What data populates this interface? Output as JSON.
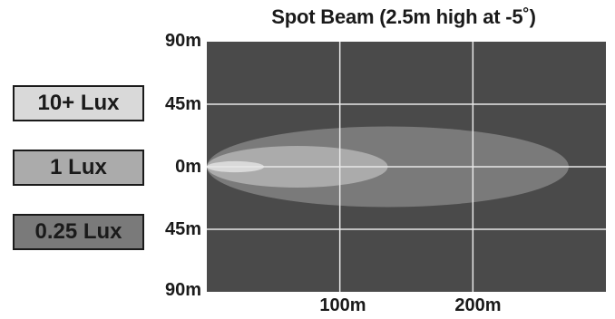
{
  "chart_data": {
    "type": "area",
    "title": "Spot Beam (2.5m high at -5˚)",
    "xlabel": "",
    "ylabel": "",
    "xlim": [
      0,
      300
    ],
    "ylim": [
      -90,
      90
    ],
    "x_ticks": [
      {
        "value": 100,
        "label": "100m"
      },
      {
        "value": 200,
        "label": "200m"
      }
    ],
    "y_ticks": [
      {
        "value": 90,
        "label": "90m"
      },
      {
        "value": 45,
        "label": "45m"
      },
      {
        "value": 0,
        "label": "0m"
      },
      {
        "value": -45,
        "label": "45m"
      },
      {
        "value": -90,
        "label": "90m"
      }
    ],
    "grid": true,
    "legend_position": "left",
    "colors": {
      "background": "#4a4a4a",
      "grid": "#e8e8e8"
    },
    "series": [
      {
        "name": "0.25 Lux",
        "color": "#7a7a7a",
        "x_start": 0,
        "x_end": 272,
        "half_width": 29
      },
      {
        "name": "1 Lux",
        "color": "#ababab",
        "x_start": 0,
        "x_end": 136,
        "half_width": 15
      },
      {
        "name": "10+ Lux",
        "color": "#d9d9d9",
        "x_start": 0,
        "x_end": 43,
        "half_width": 4
      }
    ]
  },
  "legend": {
    "items": [
      {
        "label": "10+ Lux",
        "color": "#d9d9d9"
      },
      {
        "label": "1 Lux",
        "color": "#ababab"
      },
      {
        "label": "0.25 Lux",
        "color": "#7a7a7a"
      }
    ]
  }
}
